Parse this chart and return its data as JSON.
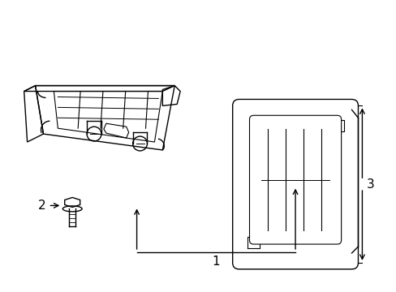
{
  "background_color": "#ffffff",
  "line_color": "#000000",
  "label_1": "1",
  "label_2": "2",
  "label_3": "3",
  "fig_width": 4.89,
  "fig_height": 3.6,
  "dpi": 100
}
